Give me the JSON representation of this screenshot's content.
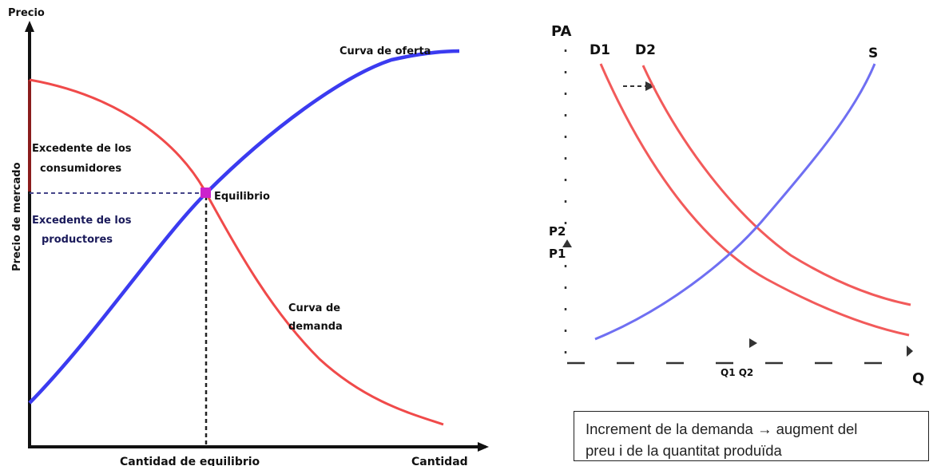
{
  "left_diagram": {
    "y_axis_title": "Precio",
    "y_axis_side_label": "Precio de mercado",
    "x_axis_title": "Cantidad",
    "equilibrium_quantity_label": "Cantidad de equilibrio",
    "supply_curve_label": "Curva de oferta",
    "demand_curve_label": [
      "Curva de",
      "demanda"
    ],
    "equilibrium_label": "Equilibrio",
    "consumer_surplus_label": [
      "Excedente de los",
      "consumidores"
    ],
    "producer_surplus_label": [
      "Excedente de los",
      "productores"
    ],
    "colors": {
      "supply": "#3b3bf0",
      "demand": "#f04a4a",
      "equilibrium": "#cc22cc",
      "axis": "#111111"
    }
  },
  "right_diagram": {
    "y_axis_title": "PA",
    "x_axis_title": "Q",
    "curve_labels": {
      "d1": "D1",
      "d2": "D2",
      "s": "S"
    },
    "price_labels": {
      "p2": "P2",
      "p1": "P1"
    },
    "quantity_labels": "Q1 Q2",
    "colors": {
      "supply": "#6f6ff2",
      "demand": "#f25a5a"
    }
  },
  "caption": {
    "line1_before_arrow": "Increment de la demanda",
    "arrow": "→",
    "line1_after_arrow": "augment del",
    "line2": "preu i de la quantitat produïda"
  }
}
